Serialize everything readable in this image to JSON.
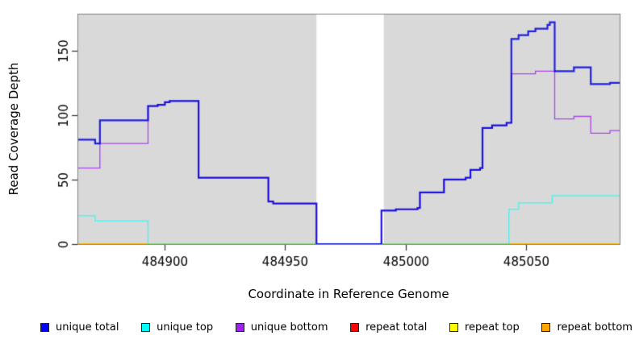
{
  "chart_data": {
    "type": "line",
    "step": true,
    "title": "",
    "xlabel": "Coordinate in Reference Genome",
    "ylabel": "Read Coverage Depth",
    "xlim": [
      484864,
      485089
    ],
    "ylim": [
      0,
      178
    ],
    "x_ticks": [
      484900,
      484950,
      485000,
      485050
    ],
    "y_ticks": [
      0,
      50,
      100,
      150
    ],
    "grid": false,
    "plot_bg": "#d9d9d9",
    "gap_band": {
      "from": 484963,
      "to": 484991,
      "color": "#ffffff"
    },
    "legend_position": "bottom",
    "series": [
      {
        "name": "repeat total",
        "color": "#ff0000",
        "alpha": 1,
        "width": 1.4,
        "points": [
          [
            484864,
            0
          ],
          [
            485089,
            0
          ]
        ]
      },
      {
        "name": "repeat top",
        "color": "#ffff00",
        "alpha": 1,
        "width": 1.8,
        "points": [
          [
            484864,
            0
          ],
          [
            485089,
            0
          ]
        ]
      },
      {
        "name": "repeat bottom",
        "color": "#ffa500",
        "alpha": 1,
        "width": 1.6,
        "points": [
          [
            484864,
            0
          ],
          [
            485089,
            0
          ]
        ]
      },
      {
        "name": "unique bottom",
        "color": "#a020f0",
        "alpha": 0.8,
        "width": 1.3,
        "points": [
          [
            484864,
            59
          ],
          [
            484873,
            78
          ],
          [
            484893,
            107
          ],
          [
            484897,
            108
          ],
          [
            484900,
            110
          ],
          [
            484902,
            111
          ],
          [
            484914,
            51.5
          ],
          [
            484943,
            33
          ],
          [
            484945,
            31.5
          ],
          [
            484963,
            0
          ],
          [
            484990,
            26
          ],
          [
            484996,
            27
          ],
          [
            485005,
            28
          ],
          [
            485006,
            40
          ],
          [
            485016,
            50
          ],
          [
            485025,
            51.5
          ],
          [
            485027,
            57.5
          ],
          [
            485031,
            59
          ],
          [
            485032,
            90
          ],
          [
            485036,
            92
          ],
          [
            485042,
            94
          ],
          [
            485044,
            132
          ],
          [
            485054,
            134
          ],
          [
            485062,
            97
          ],
          [
            485070,
            99
          ],
          [
            485077,
            86
          ],
          [
            485085,
            88
          ],
          [
            485089,
            88
          ]
        ]
      },
      {
        "name": "unique top",
        "color": "#00ffff",
        "alpha": 0.6,
        "width": 1.5,
        "points": [
          [
            484864,
            22
          ],
          [
            484871,
            18
          ],
          [
            484893,
            0
          ],
          [
            485043,
            27
          ],
          [
            485047,
            32
          ],
          [
            485061,
            37.5
          ],
          [
            485089,
            37.5
          ]
        ]
      },
      {
        "name": "unique total",
        "color": "#0000e0",
        "alpha": 0.85,
        "width": 2.2,
        "points": [
          [
            484864,
            81
          ],
          [
            484871,
            78
          ],
          [
            484873,
            96
          ],
          [
            484893,
            107
          ],
          [
            484897,
            108
          ],
          [
            484900,
            110
          ],
          [
            484902,
            111
          ],
          [
            484914,
            51.5
          ],
          [
            484943,
            33
          ],
          [
            484945,
            31.5
          ],
          [
            484963,
            0
          ],
          [
            484990,
            26
          ],
          [
            484996,
            27
          ],
          [
            485005,
            28
          ],
          [
            485006,
            40
          ],
          [
            485016,
            50
          ],
          [
            485025,
            51.5
          ],
          [
            485027,
            57.5
          ],
          [
            485031,
            59
          ],
          [
            485032,
            90
          ],
          [
            485036,
            92
          ],
          [
            485042,
            94
          ],
          [
            485044,
            159
          ],
          [
            485047,
            162
          ],
          [
            485051,
            165
          ],
          [
            485054,
            167
          ],
          [
            485059,
            170
          ],
          [
            485060,
            172
          ],
          [
            485062,
            134
          ],
          [
            485070,
            137
          ],
          [
            485077,
            124
          ],
          [
            485085,
            125
          ],
          [
            485089,
            125
          ]
        ]
      }
    ],
    "legend": [
      {
        "label": "unique total",
        "color": "#0000ff"
      },
      {
        "label": "unique top",
        "color": "#00ffff"
      },
      {
        "label": "unique bottom",
        "color": "#a020f0"
      },
      {
        "label": "repeat total",
        "color": "#ff0000"
      },
      {
        "label": "repeat top",
        "color": "#ffff00"
      },
      {
        "label": "repeat bottom",
        "color": "#ffa500"
      }
    ]
  }
}
